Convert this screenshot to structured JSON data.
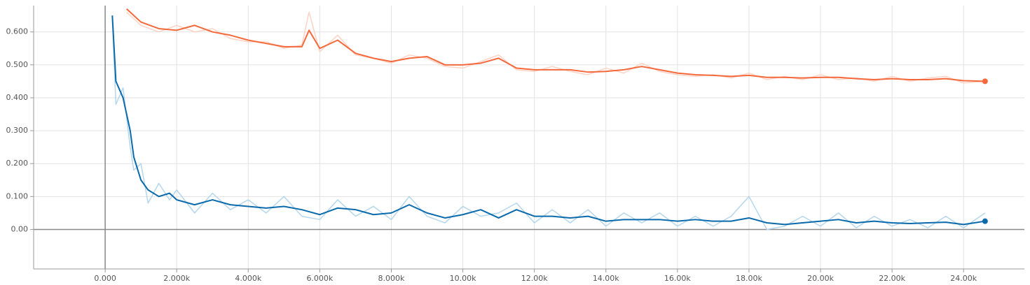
{
  "chart_data": {
    "type": "line",
    "xlim": [
      -2000,
      25700
    ],
    "ylim": [
      -0.12,
      0.68
    ],
    "grid": true,
    "xticks": [
      {
        "value": 0,
        "label": "0.000"
      },
      {
        "value": 2000,
        "label": "2.000k"
      },
      {
        "value": 4000,
        "label": "4.000k"
      },
      {
        "value": 6000,
        "label": "6.000k"
      },
      {
        "value": 8000,
        "label": "8.000k"
      },
      {
        "value": 10000,
        "label": "10.00k"
      },
      {
        "value": 12000,
        "label": "12.00k"
      },
      {
        "value": 14000,
        "label": "14.00k"
      },
      {
        "value": 16000,
        "label": "16.00k"
      },
      {
        "value": 18000,
        "label": "18.00k"
      },
      {
        "value": 20000,
        "label": "20.00k"
      },
      {
        "value": 22000,
        "label": "22.00k"
      },
      {
        "value": 24000,
        "label": "24.00k"
      }
    ],
    "yticks": [
      {
        "value": 0,
        "label": "0.00"
      },
      {
        "value": 0.1,
        "label": "0.100"
      },
      {
        "value": 0.2,
        "label": "0.200"
      },
      {
        "value": 0.3,
        "label": "0.300"
      },
      {
        "value": 0.4,
        "label": "0.400"
      },
      {
        "value": 0.5,
        "label": "0.500"
      },
      {
        "value": 0.6,
        "label": "0.600"
      }
    ],
    "series": [
      {
        "color": "#fcd3c4",
        "smoothed": false,
        "x": [
          600,
          1000,
          1500,
          2000,
          2500,
          3000,
          3500,
          4000,
          4500,
          5000,
          5500,
          5700,
          6000,
          6500,
          7000,
          7500,
          8000,
          8500,
          9000,
          9500,
          10000,
          10500,
          11000,
          11500,
          12000,
          12500,
          13000,
          13500,
          14000,
          14500,
          15000,
          15500,
          16000,
          16500,
          17000,
          17500,
          18000,
          18500,
          19000,
          19500,
          20000,
          20500,
          21000,
          21500,
          22000,
          22500,
          23000,
          23500,
          24000,
          24600
        ],
        "values": [
          0.66,
          0.62,
          0.6,
          0.62,
          0.6,
          0.61,
          0.58,
          0.57,
          0.57,
          0.55,
          0.56,
          0.66,
          0.54,
          0.59,
          0.53,
          0.52,
          0.505,
          0.53,
          0.52,
          0.495,
          0.49,
          0.51,
          0.53,
          0.485,
          0.48,
          0.495,
          0.48,
          0.47,
          0.49,
          0.475,
          0.505,
          0.48,
          0.47,
          0.465,
          0.47,
          0.46,
          0.475,
          0.455,
          0.465,
          0.455,
          0.47,
          0.455,
          0.46,
          0.45,
          0.465,
          0.45,
          0.46,
          0.465,
          0.445,
          0.45
        ]
      },
      {
        "color": "#f4693c",
        "smoothed": true,
        "x": [
          600,
          1000,
          1500,
          2000,
          2500,
          3000,
          3500,
          4000,
          4500,
          5000,
          5500,
          5700,
          6000,
          6500,
          7000,
          7500,
          8000,
          8500,
          9000,
          9500,
          10000,
          10500,
          11000,
          11500,
          12000,
          12500,
          13000,
          13500,
          14000,
          14500,
          15000,
          15500,
          16000,
          16500,
          17000,
          17500,
          18000,
          18500,
          19000,
          19500,
          20000,
          20500,
          21000,
          21500,
          22000,
          22500,
          23000,
          23500,
          24000,
          24600
        ],
        "values": [
          0.67,
          0.63,
          0.61,
          0.605,
          0.62,
          0.6,
          0.59,
          0.575,
          0.565,
          0.555,
          0.555,
          0.605,
          0.55,
          0.575,
          0.535,
          0.52,
          0.51,
          0.52,
          0.525,
          0.5,
          0.5,
          0.505,
          0.52,
          0.49,
          0.485,
          0.485,
          0.485,
          0.478,
          0.48,
          0.485,
          0.495,
          0.485,
          0.475,
          0.47,
          0.468,
          0.465,
          0.468,
          0.462,
          0.462,
          0.46,
          0.462,
          0.462,
          0.458,
          0.455,
          0.458,
          0.455,
          0.455,
          0.458,
          0.452,
          0.45
        ]
      },
      {
        "color": "#b4d6ec",
        "smoothed": false,
        "x": [
          200,
          300,
          500,
          700,
          800,
          1000,
          1200,
          1500,
          1800,
          2000,
          2500,
          3000,
          3500,
          4000,
          4500,
          5000,
          5500,
          6000,
          6500,
          7000,
          7500,
          8000,
          8500,
          9000,
          9500,
          10000,
          10500,
          11000,
          11500,
          12000,
          12500,
          13000,
          13500,
          14000,
          14500,
          15000,
          15500,
          16000,
          16500,
          17000,
          17500,
          18000,
          18500,
          19000,
          19500,
          20000,
          20500,
          21000,
          21500,
          22000,
          22500,
          23000,
          23500,
          24000,
          24600
        ],
        "values": [
          0.64,
          0.38,
          0.43,
          0.25,
          0.18,
          0.2,
          0.08,
          0.14,
          0.09,
          0.12,
          0.05,
          0.11,
          0.06,
          0.09,
          0.05,
          0.1,
          0.04,
          0.03,
          0.09,
          0.04,
          0.07,
          0.03,
          0.1,
          0.04,
          0.02,
          0.07,
          0.04,
          0.05,
          0.08,
          0.02,
          0.06,
          0.02,
          0.06,
          0.01,
          0.05,
          0.02,
          0.05,
          0.01,
          0.04,
          0.01,
          0.04,
          0.1,
          0.0,
          0.01,
          0.04,
          0.01,
          0.05,
          0.005,
          0.04,
          0.01,
          0.03,
          0.005,
          0.04,
          0.005,
          0.05
        ]
      },
      {
        "color": "#0a6aab",
        "smoothed": true,
        "x": [
          200,
          300,
          500,
          700,
          800,
          1000,
          1200,
          1500,
          1800,
          2000,
          2500,
          3000,
          3500,
          4000,
          4500,
          5000,
          5500,
          6000,
          6500,
          7000,
          7500,
          8000,
          8500,
          9000,
          9500,
          10000,
          10500,
          11000,
          11500,
          12000,
          12500,
          13000,
          13500,
          14000,
          14500,
          15000,
          15500,
          16000,
          16500,
          17000,
          17500,
          18000,
          18500,
          19000,
          19500,
          20000,
          20500,
          21000,
          21500,
          22000,
          22500,
          23000,
          23500,
          24000,
          24600
        ],
        "values": [
          0.65,
          0.45,
          0.4,
          0.3,
          0.22,
          0.15,
          0.12,
          0.1,
          0.11,
          0.09,
          0.075,
          0.09,
          0.075,
          0.07,
          0.065,
          0.07,
          0.06,
          0.045,
          0.065,
          0.06,
          0.045,
          0.05,
          0.075,
          0.05,
          0.035,
          0.045,
          0.06,
          0.035,
          0.06,
          0.04,
          0.04,
          0.035,
          0.04,
          0.025,
          0.03,
          0.03,
          0.03,
          0.025,
          0.03,
          0.025,
          0.025,
          0.035,
          0.02,
          0.015,
          0.02,
          0.025,
          0.03,
          0.02,
          0.025,
          0.02,
          0.018,
          0.02,
          0.022,
          0.015,
          0.025
        ]
      }
    ]
  }
}
